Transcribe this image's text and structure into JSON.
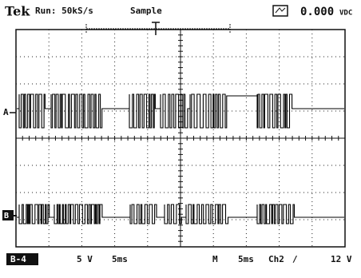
{
  "header": {
    "brand": "Tek",
    "status": "Run: 50kS/s",
    "mode": "Sample",
    "readout": "0.000",
    "readout_unit": "VDC"
  },
  "channels": [
    {
      "label": "A"
    },
    {
      "label": "B"
    }
  ],
  "footer": {
    "channel_tag": "B-4",
    "volts_div": "5 V",
    "time_div": "5ms",
    "main_label": "M",
    "main_time": "5ms",
    "trigger_source": "Ch2",
    "trigger_slope": "/",
    "trigger_level": "12 V"
  }
}
